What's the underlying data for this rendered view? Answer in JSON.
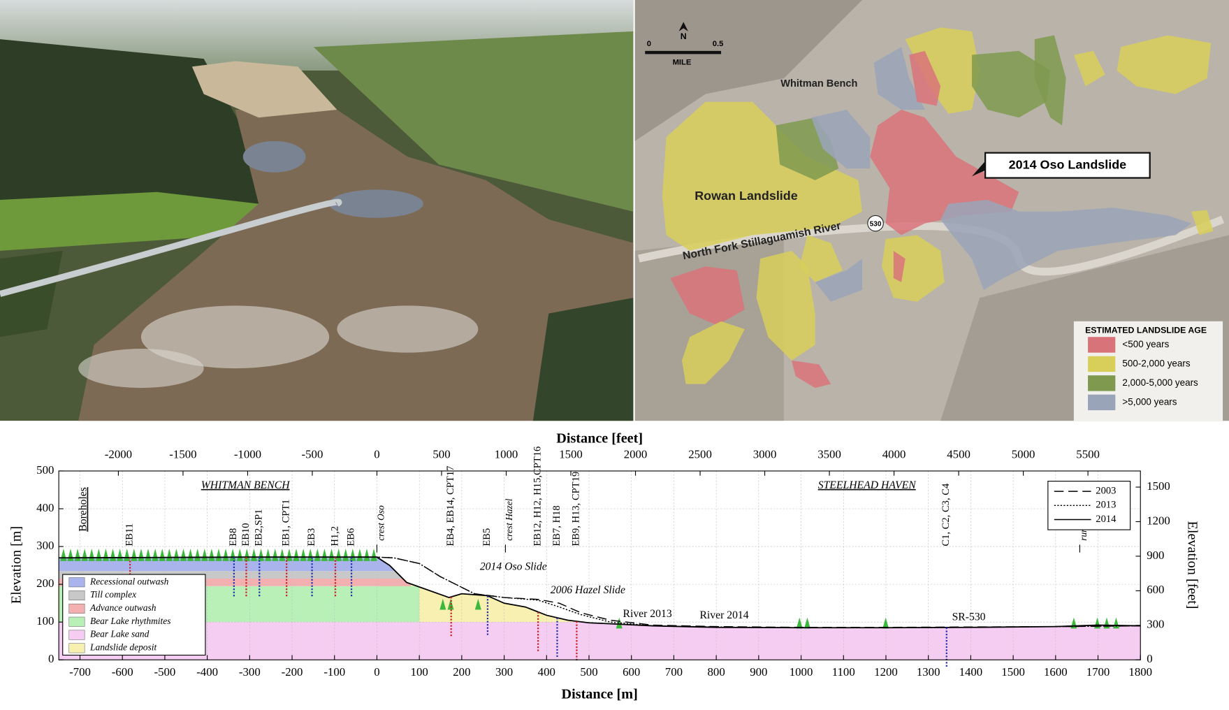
{
  "map": {
    "north": "N",
    "scale_labels": [
      "0",
      "0.5"
    ],
    "scale_unit": "MILE",
    "labels": [
      "Whitman Bench",
      "Rowan Landslide",
      "North Fork Stillaguamish River",
      "530"
    ],
    "callout": "2014 Oso Landslide",
    "legend": {
      "title": "ESTIMATED LANDSLIDE AGE",
      "items": [
        {
          "name": "<500 years",
          "color": "#d9737a"
        },
        {
          "name": "500-2,000 years",
          "color": "#d8cf5a"
        },
        {
          "name": "2,000-5,000 years",
          "color": "#7f9a4f"
        },
        {
          "name": ">5,000 years",
          "color": "#9aa4b8"
        }
      ]
    }
  },
  "chart_data": {
    "type": "line",
    "xlabel": "Distance [m]",
    "x2label": "Distance [feet]",
    "ylabel": "Elevation [m]",
    "y2label": "Elevation [feet]",
    "xlim": [
      -750,
      1800
    ],
    "xticks": [
      -700,
      -600,
      -500,
      -400,
      -300,
      -200,
      -100,
      0,
      100,
      200,
      300,
      400,
      500,
      600,
      700,
      800,
      900,
      1000,
      1100,
      1200,
      1300,
      1400,
      1500,
      1600,
      1700,
      1800
    ],
    "x2lim": [
      -2461,
      5906
    ],
    "x2ticks": [
      -2000,
      -1500,
      -1000,
      -500,
      0,
      500,
      1000,
      1500,
      2000,
      2500,
      3000,
      3500,
      4000,
      4500,
      5000,
      5500
    ],
    "ylim": [
      0,
      500
    ],
    "yticks": [
      0,
      100,
      200,
      300,
      400,
      500
    ],
    "y2lim": [
      0,
      1640
    ],
    "y2ticks": [
      0,
      300,
      600,
      900,
      1200,
      1500
    ],
    "grid": true,
    "series": [
      {
        "name": "2003",
        "style": "dashed",
        "color": "#000000",
        "x": [
          -750,
          -300,
          0,
          40,
          100,
          150,
          230,
          300,
          380,
          430,
          480,
          550,
          650,
          800,
          1000,
          1200,
          1400,
          1600,
          1800
        ],
        "values": [
          270,
          272,
          272,
          270,
          255,
          220,
          175,
          165,
          160,
          150,
          125,
          105,
          92,
          88,
          86,
          86,
          87,
          88,
          90
        ]
      },
      {
        "name": "2013",
        "style": "dotted",
        "color": "#000000",
        "x": [
          -750,
          -300,
          0,
          40,
          100,
          150,
          230,
          300,
          380,
          430,
          480,
          550,
          650,
          800,
          1000,
          1200,
          1400,
          1600,
          1800
        ],
        "values": [
          270,
          272,
          272,
          270,
          255,
          220,
          175,
          165,
          158,
          140,
          120,
          100,
          90,
          87,
          85,
          85,
          86,
          88,
          90
        ]
      },
      {
        "name": "2014",
        "style": "solid",
        "color": "#000000",
        "x": [
          -750,
          -300,
          0,
          30,
          70,
          120,
          170,
          200,
          260,
          300,
          350,
          400,
          450,
          500,
          560,
          650,
          800,
          1000,
          1200,
          1400,
          1600,
          1700,
          1800
        ],
        "values": [
          270,
          272,
          272,
          250,
          205,
          185,
          165,
          175,
          170,
          150,
          140,
          118,
          105,
          98,
          95,
          90,
          86,
          85,
          85,
          86,
          88,
          92,
          90
        ]
      }
    ],
    "layers": [
      {
        "name": "Recessional outwash",
        "color": "#aab4ec",
        "top": 270,
        "bottom": 235,
        "extent": [
          -750,
          40
        ]
      },
      {
        "name": "Till complex",
        "color": "#c8c8c8",
        "top": 235,
        "bottom": 215,
        "extent": [
          -750,
          60
        ]
      },
      {
        "name": "Advance outwash",
        "color": "#f4b0b0",
        "top": 215,
        "bottom": 195,
        "extent": [
          -750,
          80
        ]
      },
      {
        "name": "Bear Lake rhythmites",
        "color": "#b8f0b8",
        "top": 195,
        "bottom": 100,
        "extent": [
          -750,
          100
        ]
      },
      {
        "name": "Bear Lake sand",
        "color": "#f6cdf2",
        "top": 100,
        "bottom": 0,
        "extent": [
          -750,
          1800
        ]
      },
      {
        "name": "Landslide deposit",
        "color": "#f8f0b0",
        "top": 200,
        "bottom": 95,
        "extent": [
          0,
          1800
        ]
      }
    ],
    "boreholes": [
      {
        "label": "EB11",
        "x": -582
      },
      {
        "label": "EB8",
        "x": -337
      },
      {
        "label": "EB10",
        "x": -308
      },
      {
        "label": "EB2,SP1",
        "x": -277
      },
      {
        "label": "EB1, CPT1",
        "x": -213
      },
      {
        "label": "EB3",
        "x": -153
      },
      {
        "label": "H1,2",
        "x": -98
      },
      {
        "label": "EB6",
        "x": -60
      },
      {
        "label": "EB4, EB14, CPT17",
        "x": 175
      },
      {
        "label": "EB5",
        "x": 261
      },
      {
        "label": "EB12, H12, H15,CPT16",
        "x": 380
      },
      {
        "label": "EB7, H18",
        "x": 425
      },
      {
        "label": "EB9, H13, CPT19",
        "x": 471
      },
      {
        "label": "C1, C2, C3, C4",
        "x": 1343
      }
    ],
    "markers": [
      {
        "label": "crest Oso",
        "x": 0
      },
      {
        "label": "crest Hazel",
        "x": 303
      },
      {
        "label": "run-out Oso",
        "x": 1657
      }
    ],
    "annotations": [
      "WHITMAN BENCH",
      "STEELHEAD HAVEN",
      "Boreholes",
      "2014 Oso Slide",
      "2006 Hazel Slide",
      "River 2013",
      "River 2014",
      "SR-530"
    ]
  }
}
